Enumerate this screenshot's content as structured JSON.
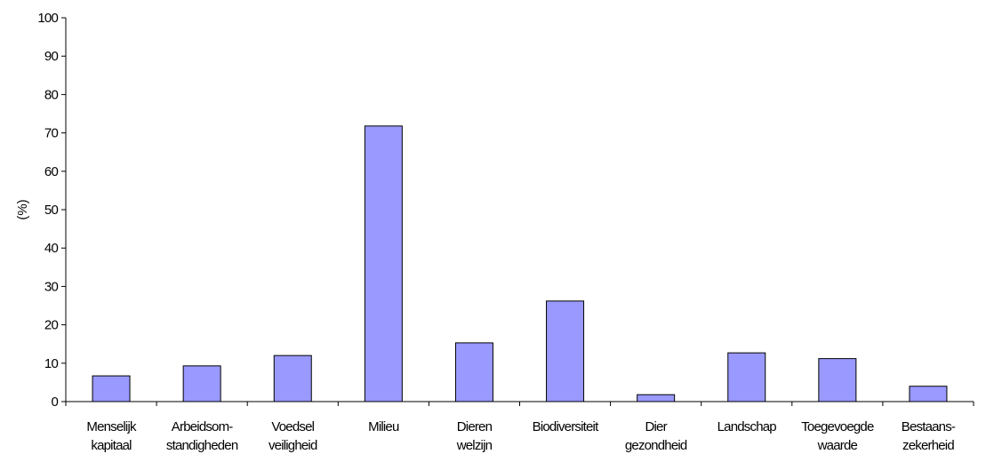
{
  "chart_data": {
    "type": "bar",
    "ylabel": "(%)",
    "xlabel": "",
    "ylim": [
      0,
      100
    ],
    "yticks": [
      "0",
      "10",
      "20",
      "30",
      "40",
      "50",
      "60",
      "70",
      "80",
      "90",
      "100"
    ],
    "categories": [
      [
        "Menselijk",
        "kapitaal"
      ],
      [
        "Arbeidsom-",
        "standigheden"
      ],
      [
        "Voedsel",
        "veiligheid"
      ],
      [
        "Milieu"
      ],
      [
        "Dieren",
        "welzijn"
      ],
      [
        "Biodiversiteit"
      ],
      [
        "Dier",
        "gezondheid"
      ],
      [
        "Landschap"
      ],
      [
        "Toegevoegde",
        "waarde"
      ],
      [
        "Bestaans-",
        "zekerheid"
      ]
    ],
    "values": [
      6.7,
      9.3,
      12.0,
      71.8,
      15.3,
      26.2,
      1.8,
      12.7,
      11.2,
      4.0
    ],
    "bar_color": "#9999ff",
    "bar_edge_color": "#000000",
    "grid": false,
    "legend": "none"
  }
}
